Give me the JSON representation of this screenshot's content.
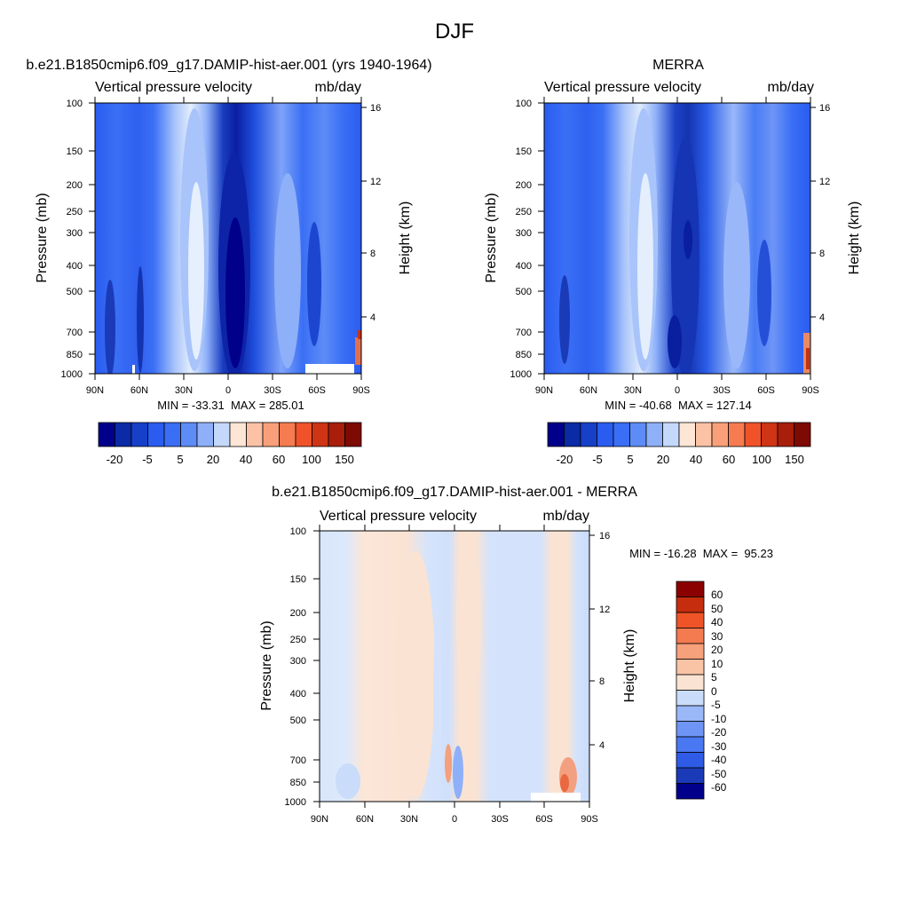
{
  "figure": {
    "title": "DJF"
  },
  "colors": {
    "abs_palette": [
      "#00008b",
      "#0a2aa6",
      "#1740c8",
      "#2a5cf0",
      "#3a6ff5",
      "#5d8cf7",
      "#8eb0f9",
      "#c4d8fb",
      "#fde6d6",
      "#fcc2a6",
      "#f9a07a",
      "#f77b50",
      "#f0522a",
      "#cf3414",
      "#a81e0a",
      "#7d0a03"
    ],
    "diff_palette": [
      "#00008b",
      "#1a3ab8",
      "#2f5be6",
      "#4a78f3",
      "#6e95f6",
      "#9ab7f8",
      "#c9dcf9",
      "#fbe3d3",
      "#f9c3a6",
      "#f7a07c",
      "#f47a50",
      "#ee5427",
      "#c52d0e",
      "#8b0000"
    ]
  },
  "chart_data": [
    {
      "type": "heatmap",
      "title": "b.e21.B1850cmip6.f09_g17.DAMIP-hist-aer.001 (yrs 1940-1964)",
      "left_label": "Vertical pressure velocity",
      "right_label": "mb/day",
      "ylabel": "Pressure (mb)",
      "y2label": "Height (km)",
      "yticks": [
        "100",
        "150",
        "200",
        "250",
        "300",
        "400",
        "500",
        "700",
        "850",
        "1000"
      ],
      "y2ticks": [
        "16",
        "12",
        "8",
        "4"
      ],
      "xticks": [
        "90N",
        "60N",
        "30N",
        "0",
        "30S",
        "60S",
        "90S"
      ],
      "stats": "MIN = -33.31  MAX = 285.01",
      "colorbar_labels": [
        "-20",
        "-5",
        "5",
        "20",
        "40",
        "60",
        "100",
        "150"
      ]
    },
    {
      "type": "heatmap",
      "title": "MERRA",
      "left_label": "Vertical pressure velocity",
      "right_label": "mb/day",
      "ylabel": "Pressure (mb)",
      "y2label": "Height (km)",
      "yticks": [
        "100",
        "150",
        "200",
        "250",
        "300",
        "400",
        "500",
        "700",
        "850",
        "1000"
      ],
      "y2ticks": [
        "16",
        "12",
        "8",
        "4"
      ],
      "xticks": [
        "90N",
        "60N",
        "30N",
        "0",
        "30S",
        "60S",
        "90S"
      ],
      "stats": "MIN = -40.68  MAX = 127.14",
      "colorbar_labels": [
        "-20",
        "-5",
        "5",
        "20",
        "40",
        "60",
        "100",
        "150"
      ]
    },
    {
      "type": "heatmap",
      "title": "b.e21.B1850cmip6.f09_g17.DAMIP-hist-aer.001 - MERRA",
      "left_label": "Vertical pressure velocity",
      "right_label": "mb/day",
      "ylabel": "Pressure (mb)",
      "y2label": "Height (km)",
      "yticks": [
        "100",
        "150",
        "200",
        "250",
        "300",
        "400",
        "500",
        "700",
        "850",
        "1000"
      ],
      "y2ticks": [
        "16",
        "12",
        "8",
        "4"
      ],
      "xticks": [
        "90N",
        "60N",
        "30N",
        "0",
        "30S",
        "60S",
        "90S"
      ],
      "stats": "MIN = -16.28  MAX =  95.23",
      "colorbar_labels": [
        "60",
        "50",
        "40",
        "30",
        "20",
        "10",
        "5",
        "0",
        "-5",
        "-10",
        "-20",
        "-30",
        "-40",
        "-50",
        "-60"
      ]
    }
  ]
}
